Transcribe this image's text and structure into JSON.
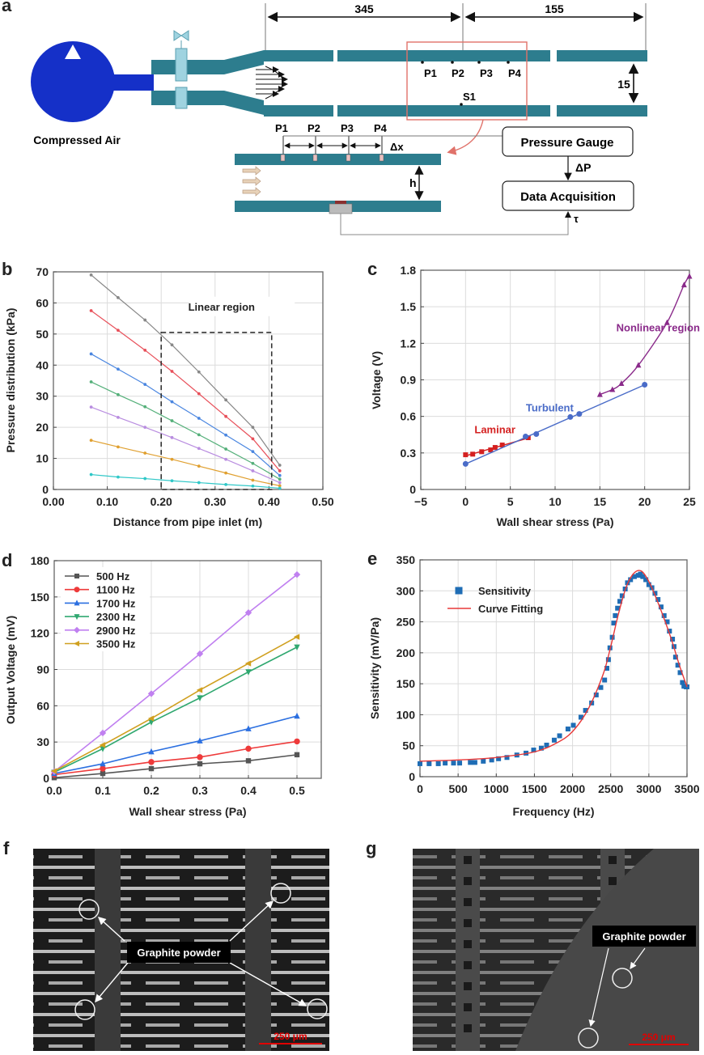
{
  "panels": {
    "a": {
      "letter": "a",
      "source_label": "Compressed Air",
      "dim_345": "345",
      "dim_155": "155",
      "dim_15": "15",
      "top_ports": [
        "P1",
        "P2",
        "P3",
        "P4"
      ],
      "sensor_label": "S1",
      "detail_ports": [
        "P1",
        "P2",
        "P3",
        "P4"
      ],
      "dx_label": "Δx",
      "h_label": "h",
      "pressure_gauge": "Pressure Gauge",
      "delta_p": "ΔP",
      "data_acquisition": "Data Acquisition",
      "tau": "τ",
      "colors": {
        "tank": "#1530c8",
        "pipe": "#2d7d8e",
        "valve": "#9fd3e0",
        "highlight": "#e0726a",
        "flow_arrow": "#e8d2b8"
      }
    },
    "b": {
      "letter": "b"
    },
    "c": {
      "letter": "c"
    },
    "d": {
      "letter": "d"
    },
    "e": {
      "letter": "e"
    },
    "f": {
      "letter": "f",
      "callout": "Graphite powder",
      "scale_bar": "250 μm"
    },
    "g": {
      "letter": "g",
      "callout": "Graphite powder",
      "scale_bar": "250 μm"
    }
  },
  "chart_data": [
    {
      "id": "b",
      "type": "line",
      "xlabel": "Distance from pipe inlet (m)",
      "ylabel": "Pressure distribution (kPa)",
      "xlim": [
        0,
        0.5
      ],
      "ylim": [
        0,
        70
      ],
      "xticks": [
        "0.00",
        "0.10",
        "0.20",
        "0.30",
        "0.40",
        "0.50"
      ],
      "yticks": [
        "0",
        "10",
        "20",
        "30",
        "40",
        "50",
        "60",
        "70"
      ],
      "grid": true,
      "annotation": "Linear region",
      "linear_region": {
        "x": [
          0.2,
          0.405
        ],
        "y": [
          0,
          50.5
        ]
      },
      "x": [
        0.07,
        0.12,
        0.17,
        0.22,
        0.27,
        0.32,
        0.37,
        0.42
      ],
      "series": [
        {
          "name": "s1",
          "color": "#888888",
          "values": [
            69,
            61.7,
            54.5,
            46.5,
            37.8,
            28.8,
            20,
            7.8
          ]
        },
        {
          "name": "s2",
          "color": "#e8505a",
          "values": [
            57.5,
            51.2,
            44.8,
            38,
            30.8,
            23.5,
            16.3,
            6
          ]
        },
        {
          "name": "s3",
          "color": "#4a86e0",
          "values": [
            43.6,
            38.7,
            33.8,
            28.2,
            22.9,
            17.5,
            12.2,
            4.5
          ]
        },
        {
          "name": "s4",
          "color": "#55b07a",
          "values": [
            34.6,
            30.5,
            26.6,
            22.1,
            17.6,
            13,
            8.4,
            3.3
          ]
        },
        {
          "name": "s5",
          "color": "#b98de0",
          "values": [
            26.5,
            23.2,
            20,
            16.7,
            13.2,
            9.7,
            6,
            2.2
          ]
        },
        {
          "name": "s6",
          "color": "#e0a030",
          "values": [
            15.8,
            13.7,
            11.7,
            9.7,
            7.5,
            5.3,
            3,
            1.2
          ]
        },
        {
          "name": "s7",
          "color": "#30c8c8",
          "values": [
            4.8,
            4,
            3.5,
            2.8,
            2.2,
            1.6,
            1.1,
            0.4
          ]
        }
      ]
    },
    {
      "id": "c",
      "type": "scatter",
      "xlabel": "Wall shear stress (Pa)",
      "ylabel": "Voltage (V)",
      "xlim": [
        -5,
        25
      ],
      "ylim": [
        0,
        1.8
      ],
      "xticks": [
        "−5",
        "0",
        "5",
        "10",
        "15",
        "20",
        "25"
      ],
      "yticks": [
        "0",
        "0.3",
        "0.6",
        "0.9",
        "1.2",
        "1.5",
        "1.8"
      ],
      "grid": true,
      "series": [
        {
          "name": "Laminar",
          "color": "#d42020",
          "marker": "square",
          "x": [
            0,
            0.8,
            1.8,
            2.8,
            3.3,
            4.1,
            7
          ],
          "y": [
            0.285,
            0.29,
            0.31,
            0.325,
            0.345,
            0.365,
            0.425
          ],
          "fit": "linear"
        },
        {
          "name": "Turbulent",
          "color": "#4a6cc8",
          "marker": "circle",
          "x": [
            0,
            6.7,
            7.9,
            11.7,
            12.7,
            20
          ],
          "y": [
            0.21,
            0.435,
            0.455,
            0.595,
            0.62,
            0.86
          ],
          "fit": "linear"
        },
        {
          "name": "Nonlinear region",
          "color": "#8a2a8a",
          "marker": "triangle",
          "x": [
            15,
            16.4,
            17.4,
            19.3,
            22.5,
            24.4,
            25
          ],
          "y": [
            0.78,
            0.82,
            0.87,
            1.02,
            1.37,
            1.68,
            1.75
          ],
          "fit": "curve"
        }
      ]
    },
    {
      "id": "d",
      "type": "line",
      "xlabel": "Wall shear stress (Pa)",
      "ylabel": "Output Voltage (mV)",
      "xlim": [
        0,
        0.55
      ],
      "ylim": [
        0,
        180
      ],
      "xticks": [
        "0.0",
        "0.1",
        "0.2",
        "0.3",
        "0.4",
        "0.5"
      ],
      "yticks": [
        "0",
        "30",
        "60",
        "90",
        "120",
        "150",
        "180"
      ],
      "grid": true,
      "legend": "top-left",
      "x": [
        0,
        0.1,
        0.2,
        0.3,
        0.4,
        0.5
      ],
      "series": [
        {
          "name": "500 Hz",
          "color": "#555555",
          "marker": "square",
          "values": [
            0.5,
            4,
            8,
            12,
            14.5,
            19.5
          ]
        },
        {
          "name": "1100 Hz",
          "color": "#ee3a3a",
          "marker": "circle",
          "values": [
            3,
            8,
            13.5,
            17.5,
            24.5,
            30.5
          ]
        },
        {
          "name": "1700 Hz",
          "color": "#2b6fe0",
          "marker": "triangle-up",
          "values": [
            4,
            12,
            22,
            31,
            41,
            51.5
          ]
        },
        {
          "name": "2300 Hz",
          "color": "#30a870",
          "marker": "triangle-down",
          "values": [
            5,
            24.5,
            46.5,
            66.5,
            88,
            108.5
          ]
        },
        {
          "name": "2900 Hz",
          "color": "#c080f0",
          "marker": "diamond",
          "values": [
            5.5,
            37.5,
            70,
            103,
            137,
            168.5
          ]
        },
        {
          "name": "3500 Hz",
          "color": "#d0a020",
          "marker": "triangle-left",
          "values": [
            6,
            27.5,
            49.5,
            73,
            95,
            117
          ]
        }
      ]
    },
    {
      "id": "e",
      "type": "scatter",
      "xlabel": "Frequency (Hz)",
      "ylabel": "Sensitivity (mV/Pa)",
      "xlim": [
        0,
        3500
      ],
      "ylim": [
        0,
        350
      ],
      "xticks": [
        "0",
        "500",
        "1000",
        "1500",
        "2000",
        "2500",
        "3000",
        "3500"
      ],
      "yticks": [
        "0",
        "50",
        "100",
        "150",
        "200",
        "250",
        "300",
        "350"
      ],
      "grid": true,
      "legend": "top-left",
      "series": [
        {
          "name": "Sensitivity",
          "color": "#1f6db5",
          "marker": "square",
          "x": [
            0,
            120,
            240,
            330,
            440,
            520,
            660,
            720,
            830,
            940,
            1030,
            1140,
            1270,
            1390,
            1490,
            1590,
            1660,
            1760,
            1830,
            1940,
            2010,
            2110,
            2170,
            2250,
            2310,
            2370,
            2420,
            2450,
            2470,
            2490,
            2520,
            2540,
            2560,
            2590,
            2620,
            2650,
            2690,
            2720,
            2760,
            2810,
            2860,
            2890,
            2920,
            2960,
            3000,
            3040,
            3080,
            3120,
            3160,
            3200,
            3240,
            3270,
            3310,
            3330,
            3350,
            3380,
            3410,
            3440,
            3460,
            3490,
            3500
          ],
          "y": [
            21,
            21,
            21,
            22,
            22,
            22,
            23,
            23,
            25,
            27,
            29,
            31,
            35,
            38,
            43,
            46,
            51,
            59,
            66,
            77,
            83,
            96,
            107,
            119,
            132,
            144,
            156,
            175,
            189,
            208,
            225,
            248,
            260,
            272,
            283,
            292,
            303,
            313,
            318,
            323,
            325,
            327,
            323,
            318,
            310,
            305,
            296,
            286,
            274,
            260,
            250,
            235,
            222,
            210,
            193,
            180,
            168,
            152,
            146,
            145,
            145
          ]
        },
        {
          "name": "Curve Fitting",
          "color": "#e83838",
          "line": true,
          "x": [
            0,
            500,
            1000,
            1500,
            1800,
            2000,
            2200,
            2400,
            2500,
            2600,
            2700,
            2800,
            2900,
            3000,
            3100,
            3200,
            3300,
            3400,
            3500
          ],
          "y": [
            25,
            27,
            31,
            40,
            55,
            73,
            108,
            165,
            210,
            262,
            305,
            328,
            332,
            315,
            287,
            255,
            220,
            180,
            145
          ]
        }
      ]
    }
  ]
}
